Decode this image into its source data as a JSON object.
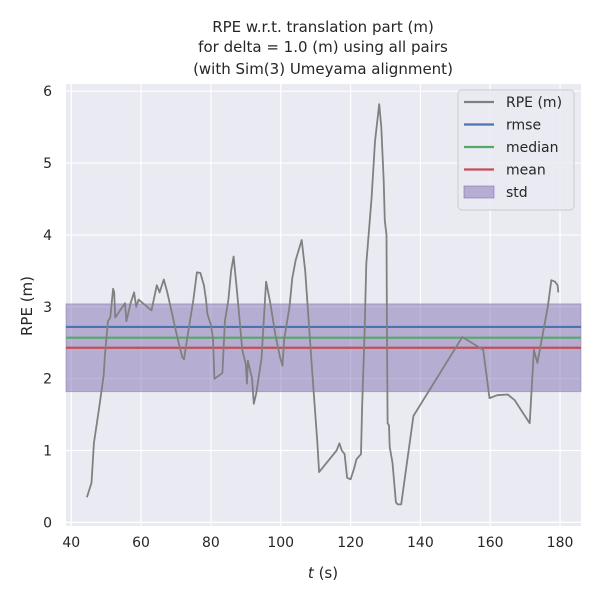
{
  "chart_data": {
    "type": "line",
    "title_lines": [
      "RPE w.r.t. translation part (m)",
      "for delta = 1.0 (m) using all pairs",
      "(with Sim(3) Umeyama alignment)"
    ],
    "xlabel_italic": "t",
    "xlabel_rest": " (s)",
    "ylabel": "RPE (m)",
    "xlim": [
      38.5,
      186
    ],
    "ylim": [
      -0.05,
      6.1
    ],
    "xticks": [
      40,
      60,
      80,
      100,
      120,
      140,
      160,
      180
    ],
    "yticks": [
      0,
      1,
      2,
      3,
      4,
      5,
      6
    ],
    "grid": true,
    "legend_position": "top-right",
    "series": [
      {
        "name": "RPE (m)",
        "color": "#808080",
        "points": [
          [
            44.5,
            0.35
          ],
          [
            45.8,
            0.55
          ],
          [
            46.5,
            1.1
          ],
          [
            48,
            1.6
          ],
          [
            49.3,
            2.05
          ],
          [
            49.6,
            2.3
          ],
          [
            50.5,
            2.8
          ],
          [
            51.2,
            2.85
          ],
          [
            52,
            3.25
          ],
          [
            52.3,
            3.2
          ],
          [
            52.6,
            2.85
          ],
          [
            54,
            2.95
          ],
          [
            55.4,
            3.05
          ],
          [
            55.8,
            2.8
          ],
          [
            57,
            3.05
          ],
          [
            58,
            3.2
          ],
          [
            58.6,
            3.0
          ],
          [
            59.3,
            3.1
          ],
          [
            60.5,
            3.05
          ],
          [
            63,
            2.95
          ],
          [
            64.5,
            3.3
          ],
          [
            65.3,
            3.2
          ],
          [
            66.5,
            3.38
          ],
          [
            67.5,
            3.2
          ],
          [
            70.5,
            2.55
          ],
          [
            71.8,
            2.3
          ],
          [
            72.3,
            2.27
          ],
          [
            73.5,
            2.65
          ],
          [
            75,
            3.1
          ],
          [
            76,
            3.48
          ],
          [
            77,
            3.47
          ],
          [
            78,
            3.3
          ],
          [
            78.6,
            3.1
          ],
          [
            79,
            2.9
          ],
          [
            80,
            2.75
          ],
          [
            80.6,
            2.55
          ],
          [
            81,
            2.0
          ],
          [
            82.5,
            2.05
          ],
          [
            83.3,
            2.08
          ],
          [
            84,
            2.8
          ],
          [
            85,
            3.1
          ],
          [
            85.8,
            3.5
          ],
          [
            86.5,
            3.7
          ],
          [
            87.5,
            3.2
          ],
          [
            89,
            2.4
          ],
          [
            90,
            2.2
          ],
          [
            90.3,
            1.93
          ],
          [
            90.6,
            2.25
          ],
          [
            91.8,
            2.0
          ],
          [
            92.3,
            1.65
          ],
          [
            93,
            1.8
          ],
          [
            94.5,
            2.28
          ],
          [
            95.8,
            3.35
          ],
          [
            97,
            3.05
          ],
          [
            98.5,
            2.6
          ],
          [
            99.8,
            2.3
          ],
          [
            100.5,
            2.18
          ],
          [
            101,
            2.55
          ],
          [
            102.5,
            3.0
          ],
          [
            103.3,
            3.4
          ],
          [
            104.3,
            3.65
          ],
          [
            106,
            3.93
          ],
          [
            107,
            3.5
          ],
          [
            108,
            2.8
          ],
          [
            109,
            2.1
          ],
          [
            110.5,
            1.1
          ],
          [
            111,
            0.7
          ],
          [
            116,
            1.0
          ],
          [
            116.8,
            1.1
          ],
          [
            117.5,
            1.0
          ],
          [
            118.3,
            0.95
          ],
          [
            119,
            0.62
          ],
          [
            120,
            0.6
          ],
          [
            121,
            0.75
          ],
          [
            121.7,
            0.88
          ],
          [
            123,
            0.95
          ],
          [
            123.3,
            1.6
          ],
          [
            124,
            2.6
          ],
          [
            124.5,
            3.6
          ],
          [
            126,
            4.5
          ],
          [
            127,
            5.3
          ],
          [
            128.2,
            5.82
          ],
          [
            128.8,
            5.5
          ],
          [
            129.5,
            4.75
          ],
          [
            129.8,
            4.2
          ],
          [
            130.3,
            4.0
          ],
          [
            130.4,
            2.8
          ],
          [
            130.6,
            1.38
          ],
          [
            131,
            1.35
          ],
          [
            131.2,
            1.05
          ],
          [
            132,
            0.83
          ],
          [
            133,
            0.28
          ],
          [
            133.5,
            0.25
          ],
          [
            134.5,
            0.25
          ],
          [
            138,
            1.48
          ],
          [
            152,
            2.58
          ],
          [
            158,
            2.4
          ],
          [
            159.8,
            1.73
          ],
          [
            162,
            1.77
          ],
          [
            165,
            1.78
          ],
          [
            167,
            1.7
          ],
          [
            171.3,
            1.38
          ],
          [
            172.5,
            2.4
          ],
          [
            173.5,
            2.22
          ],
          [
            176.5,
            3.0
          ],
          [
            177.5,
            3.37
          ],
          [
            178.5,
            3.35
          ],
          [
            179.3,
            3.3
          ],
          [
            179.5,
            3.2
          ]
        ]
      }
    ],
    "stats": {
      "rmse": 2.72,
      "median": 2.57,
      "mean": 2.43,
      "std": 0.61
    },
    "legend": [
      {
        "label": "RPE (m)",
        "kind": "line",
        "color": "#808080"
      },
      {
        "label": "rmse",
        "kind": "line",
        "color": "#4c72b0"
      },
      {
        "label": "median",
        "kind": "line",
        "color": "#55a868"
      },
      {
        "label": "mean",
        "kind": "line",
        "color": "#c44e52"
      },
      {
        "label": "std",
        "kind": "patch",
        "color": "#8172b2"
      }
    ],
    "colors": {
      "plot_bg": "#eaeaf2",
      "grid": "#ffffff",
      "rmse": "#4c72b0",
      "median": "#55a868",
      "mean": "#c44e52",
      "std": "#8172b2"
    }
  }
}
